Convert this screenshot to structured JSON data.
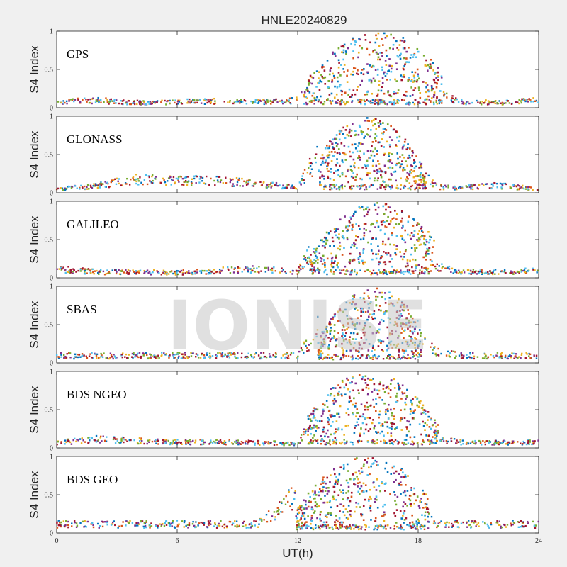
{
  "chart_data": {
    "type": "scatter",
    "title": "HNLE20240829",
    "xlabel": "UT(h)",
    "ylabel": "S4 Index",
    "xlim": [
      0,
      24
    ],
    "ylim": [
      0,
      1
    ],
    "xticks": [
      "0",
      "6",
      "12",
      "18",
      "24"
    ],
    "yticks": [
      "0",
      "0.5",
      "1"
    ],
    "watermark": "IONISE",
    "colors": [
      "#0072BD",
      "#D95319",
      "#EDB120",
      "#7E2F8E",
      "#77AC30",
      "#4DBEEE",
      "#A2142F"
    ],
    "panels": [
      {
        "name": "GPS",
        "activity": {
          "start": 12.3,
          "end": 19.2,
          "peak": 16.0,
          "max": 1.0
        },
        "series": [
          {
            "x": [
              0,
              2,
              4,
              6,
              8,
              10,
              12,
              13,
              14,
              15,
              16,
              17,
              18,
              19,
              20,
              22,
              24
            ],
            "y": [
              0.08,
              0.1,
              0.07,
              0.08,
              0.09,
              0.08,
              0.1,
              0.45,
              0.6,
              0.75,
              0.85,
              0.6,
              0.35,
              0.2,
              0.08,
              0.07,
              0.1
            ]
          }
        ]
      },
      {
        "name": "GLONASS",
        "activity": {
          "start": 13.1,
          "end": 18.4,
          "peak": 15.5,
          "max": 0.98
        },
        "series": [
          {
            "x": [
              0,
              2,
              4,
              6,
              8,
              10,
              12,
              13,
              14,
              15,
              16,
              17,
              18,
              19,
              20,
              22,
              24
            ],
            "y": [
              0.05,
              0.1,
              0.18,
              0.16,
              0.17,
              0.12,
              0.07,
              0.5,
              0.6,
              0.6,
              0.55,
              0.5,
              0.3,
              0.08,
              0.07,
              0.1,
              0.05
            ]
          }
        ]
      },
      {
        "name": "GALILEO",
        "activity": {
          "start": 12.6,
          "end": 18.8,
          "peak": 16.0,
          "max": 0.98
        },
        "series": [
          {
            "x": [
              0,
              2,
              4,
              6,
              8,
              10,
              12,
              13,
              14,
              15,
              16,
              17,
              18,
              19,
              20,
              22,
              24
            ],
            "y": [
              0.12,
              0.08,
              0.08,
              0.07,
              0.1,
              0.12,
              0.08,
              0.5,
              0.7,
              0.6,
              0.75,
              0.7,
              0.55,
              0.15,
              0.08,
              0.08,
              0.1
            ]
          }
        ]
      },
      {
        "name": "SBAS",
        "activity": {
          "start": 13.0,
          "end": 18.2,
          "peak": 15.8,
          "max": 0.98
        },
        "series": [
          {
            "x": [
              0,
              2,
              4,
              6,
              8,
              10,
              12,
              13,
              14,
              15,
              16,
              17,
              18,
              19,
              20,
              22,
              24
            ],
            "y": [
              0.1,
              0.1,
              0.1,
              0.1,
              0.1,
              0.1,
              0.1,
              0.45,
              0.55,
              0.5,
              0.6,
              0.5,
              0.3,
              0.15,
              0.1,
              0.1,
              0.1
            ]
          }
        ]
      },
      {
        "name": "BDS NGEO",
        "activity": {
          "start": 12.5,
          "end": 19.0,
          "peak": 15.6,
          "max": 1.0
        },
        "series": [
          {
            "x": [
              0,
              2,
              4,
              6,
              8,
              10,
              12,
              13,
              14,
              15,
              16,
              17,
              18,
              19,
              20,
              22,
              24
            ],
            "y": [
              0.07,
              0.12,
              0.1,
              0.08,
              0.08,
              0.07,
              0.06,
              0.45,
              0.75,
              0.8,
              0.7,
              0.5,
              0.25,
              0.12,
              0.08,
              0.07,
              0.08
            ]
          }
        ]
      },
      {
        "name": "BDS GEO",
        "activity": {
          "start": 11.9,
          "end": 18.5,
          "peak": 15.5,
          "max": 1.0
        },
        "series": [
          {
            "x": [
              0,
              2,
              4,
              6,
              8,
              10,
              12,
              13,
              14,
              15,
              16,
              17,
              18,
              19,
              20,
              22,
              24
            ],
            "y": [
              0.12,
              0.12,
              0.12,
              0.12,
              0.12,
              0.12,
              0.5,
              0.45,
              0.5,
              0.6,
              0.7,
              0.6,
              0.3,
              0.12,
              0.12,
              0.12,
              0.12
            ]
          }
        ]
      }
    ]
  }
}
